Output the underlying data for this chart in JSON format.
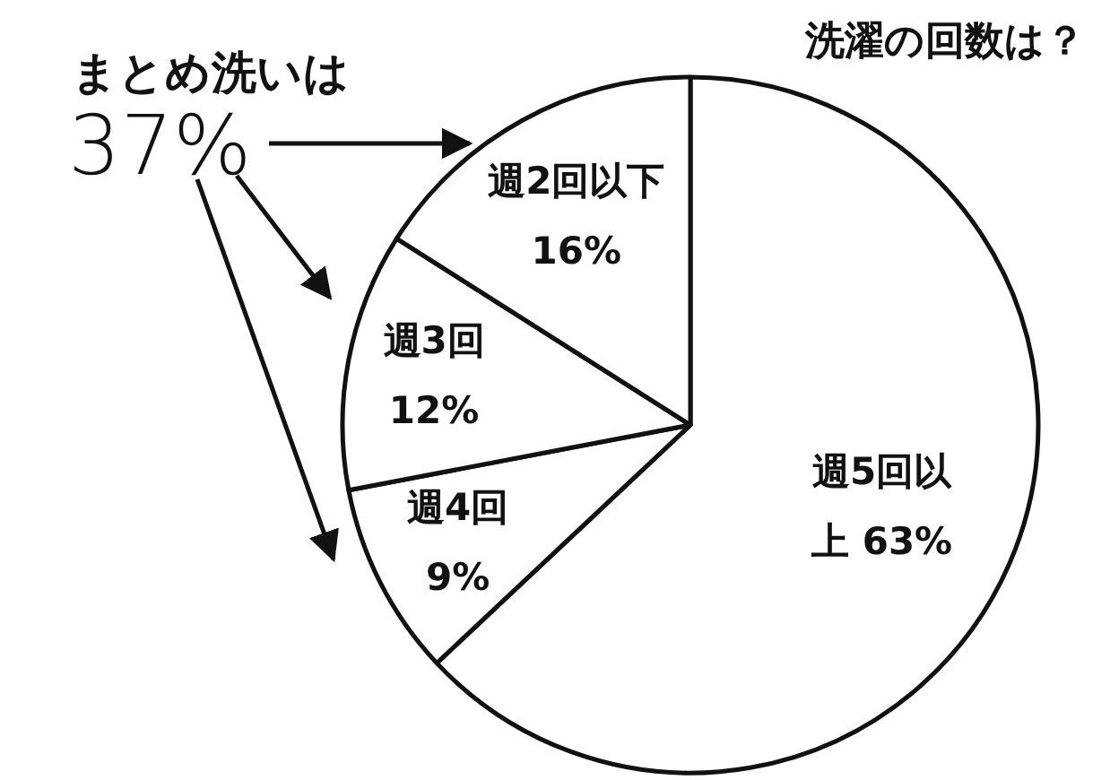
{
  "chart_data": {
    "type": "pie",
    "title": "洗濯の回数は？",
    "categories": [
      "週5回以上",
      "週4回",
      "週3回",
      "週2回以下"
    ],
    "values": [
      63,
      9,
      12,
      16
    ],
    "value_labels": [
      "63%",
      "9%",
      "12%",
      "16%"
    ],
    "colors": [
      "#ffffff",
      "#ffffff",
      "#ffffff",
      "#ffffff"
    ],
    "annotations": [
      "まとめ洗いは",
      "37%"
    ]
  }
}
